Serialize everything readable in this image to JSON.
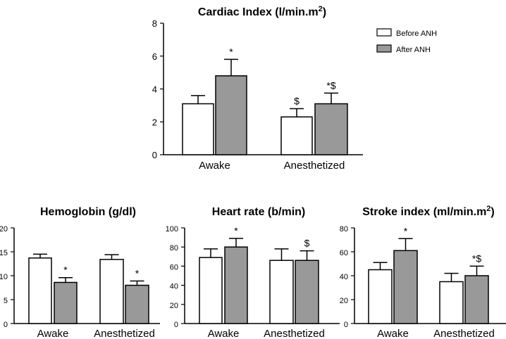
{
  "chart_data": [
    {
      "type": "bar",
      "title": "Cardiac Index (l/min.m",
      "title_sup": "2",
      "title_end": ")",
      "categories": [
        "Awake",
        "Anesthetized"
      ],
      "ylim": [
        0,
        8
      ],
      "yticks": [
        0,
        2,
        4,
        6,
        8
      ],
      "series": [
        {
          "name": "Before ANH",
          "values": [
            3.1,
            2.3
          ],
          "errors": [
            0.5,
            0.5
          ],
          "annotations": [
            "",
            "$"
          ]
        },
        {
          "name": "After ANH",
          "values": [
            4.8,
            3.1
          ],
          "errors": [
            1.0,
            0.65
          ],
          "annotations": [
            "*",
            "*$"
          ]
        }
      ],
      "legend": "top-right"
    },
    {
      "type": "bar",
      "title": "Hemoglobin (g/dl)",
      "categories": [
        "Awake",
        "Anesthetized"
      ],
      "ylim": [
        0,
        20
      ],
      "yticks": [
        0,
        5,
        10,
        15,
        20
      ],
      "series": [
        {
          "name": "Before ANH",
          "values": [
            13.7,
            13.4
          ],
          "errors": [
            0.8,
            1.0
          ],
          "annotations": [
            "",
            ""
          ]
        },
        {
          "name": "After ANH",
          "values": [
            8.6,
            8.0
          ],
          "errors": [
            1.0,
            0.9
          ],
          "annotations": [
            "*",
            "*"
          ]
        }
      ]
    },
    {
      "type": "bar",
      "title": "Heart rate (b/min)",
      "categories": [
        "Awake",
        "Anesthetized"
      ],
      "ylim": [
        0,
        100
      ],
      "yticks": [
        0,
        20,
        40,
        60,
        80,
        100
      ],
      "series": [
        {
          "name": "Before ANH",
          "values": [
            69,
            66
          ],
          "errors": [
            9,
            12
          ],
          "annotations": [
            "",
            ""
          ]
        },
        {
          "name": "After ANH",
          "values": [
            80,
            66
          ],
          "errors": [
            9,
            10
          ],
          "annotations": [
            "*",
            "$"
          ]
        }
      ]
    },
    {
      "type": "bar",
      "title": "Stroke index (ml/min.m",
      "title_sup": "2",
      "title_end": ")",
      "categories": [
        "Awake",
        "Anesthetized"
      ],
      "ylim": [
        0,
        80
      ],
      "yticks": [
        0,
        20,
        40,
        60,
        80
      ],
      "series": [
        {
          "name": "Before ANH",
          "values": [
            45,
            35
          ],
          "errors": [
            6,
            7
          ],
          "annotations": [
            "",
            ""
          ]
        },
        {
          "name": "After ANH",
          "values": [
            61,
            40
          ],
          "errors": [
            10,
            8
          ],
          "annotations": [
            "*",
            "*$"
          ]
        }
      ]
    }
  ],
  "colors": {
    "before": "#ffffff",
    "after": "#999999",
    "stroke": "#000000"
  }
}
